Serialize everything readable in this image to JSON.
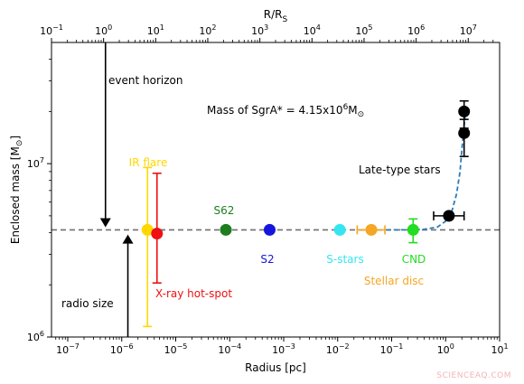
{
  "chart_data": {
    "type": "scatter",
    "xlabel": "Radius [pc]",
    "ylabel": "Enclosed mass [M",
    "ylabel_symbol": "⊙",
    "ylabel_close": "]",
    "top_xlabel": "R/R",
    "top_xlabel_sub": "S",
    "xscale": "log",
    "yscale": "log",
    "xlim": [
      5e-08,
      10
    ],
    "ylim": [
      1000000,
      50000000
    ],
    "top_xlim": [
      0.1,
      40000000
    ],
    "x_ticks": [
      {
        "base": "10",
        "exp": "−7",
        "value": 1e-07
      },
      {
        "base": "10",
        "exp": "−6",
        "value": 1e-06
      },
      {
        "base": "10",
        "exp": "−5",
        "value": 1e-05
      },
      {
        "base": "10",
        "exp": "−4",
        "value": 0.0001
      },
      {
        "base": "10",
        "exp": "−3",
        "value": 0.001
      },
      {
        "base": "10",
        "exp": "−2",
        "value": 0.01
      },
      {
        "base": "10",
        "exp": "−1",
        "value": 0.1
      },
      {
        "base": "10",
        "exp": "0",
        "value": 1
      },
      {
        "base": "10",
        "exp": "1",
        "value": 10
      }
    ],
    "top_x_ticks": [
      {
        "base": "10",
        "exp": "−1",
        "value": 0.1
      },
      {
        "base": "10",
        "exp": "0",
        "value": 1
      },
      {
        "base": "10",
        "exp": "1",
        "value": 10
      },
      {
        "base": "10",
        "exp": "2",
        "value": 100
      },
      {
        "base": "10",
        "exp": "3",
        "value": 1000
      },
      {
        "base": "10",
        "exp": "4",
        "value": 10000
      },
      {
        "base": "10",
        "exp": "5",
        "value": 100000
      },
      {
        "base": "10",
        "exp": "6",
        "value": 1000000
      },
      {
        "base": "10",
        "exp": "7",
        "value": 10000000
      }
    ],
    "y_ticks": [
      {
        "base": "10",
        "exp": "6",
        "value": 1000000
      },
      {
        "base": "10",
        "exp": "7",
        "value": 10000000
      }
    ],
    "reference_mass": {
      "value": 4150000,
      "label_prefix": "Mass of SgrA* = 4.15x10",
      "label_exp": "6",
      "label_unit": "M",
      "label_unit_symbol": "⊙",
      "color": "#707070"
    },
    "markers": [
      {
        "name": "event horizon",
        "label": "event horizon",
        "x": 5e-07,
        "y_from": 50000000,
        "y_to": 4300000,
        "direction": "down"
      },
      {
        "name": "radio size",
        "label": "radio size",
        "x": 1.3e-06,
        "y_from": 1000000,
        "y_to": 3900000,
        "direction": "up"
      }
    ],
    "points": [
      {
        "name": "IR flare",
        "label": "IR flare",
        "x": 3e-06,
        "y": 4150000,
        "y_err": [
          1150000,
          9500000
        ],
        "x_err": null,
        "color": "#ffd700"
      },
      {
        "name": "X-ray hot-spot",
        "label": "X-ray hot-spot",
        "x": 4.5e-06,
        "y": 3950000,
        "y_err": [
          2050000,
          8800000
        ],
        "x_err": null,
        "color": "#ee1111"
      },
      {
        "name": "S62",
        "label": "S62",
        "x": 8.5e-05,
        "y": 4150000,
        "y_err": null,
        "x_err": null,
        "color": "#1e7d1e"
      },
      {
        "name": "S2",
        "label": "S2",
        "x": 0.00055,
        "y": 4150000,
        "y_err": null,
        "x_err": null,
        "color": "#1515dd"
      },
      {
        "name": "S-stars",
        "label": "S-stars",
        "x": 0.011,
        "y": 4150000,
        "y_err": null,
        "x_err": null,
        "color": "#33e6f0"
      },
      {
        "name": "Stellar disc",
        "label": "Stellar disc",
        "x": 0.042,
        "y": 4150000,
        "y_err": null,
        "x_err": [
          0.023,
          0.075
        ],
        "color": "#f5a623"
      },
      {
        "name": "CND",
        "label": "CND",
        "x": 0.25,
        "y": 4150000,
        "y_err": [
          3500000,
          4800000
        ],
        "x_err": null,
        "color": "#22dd22"
      },
      {
        "name": "Late-type stars 1",
        "label": "",
        "x": 1.15,
        "y": 5000000,
        "y_err": null,
        "x_err": [
          0.6,
          2.2
        ],
        "color": "#000000"
      },
      {
        "name": "Late-type stars 2",
        "label": "",
        "x": 2.2,
        "y": 15000000,
        "y_err": [
          11000000,
          18000000
        ],
        "x_err": null,
        "color": "#000000"
      },
      {
        "name": "Late-type stars 3",
        "label": "",
        "x": 2.2,
        "y": 20000000,
        "y_err": [
          16000000,
          23000000
        ],
        "x_err": null,
        "color": "#000000"
      }
    ],
    "text_labels": [
      {
        "name": "late-type-stars-label",
        "text": "Late-type stars",
        "color": "#000000"
      }
    ],
    "model_curve": {
      "name": "enclosed mass model",
      "color": "#2b7bb9",
      "style": "dashed",
      "x": [
        0.08,
        0.2,
        0.4,
        0.7,
        1.0,
        1.3,
        1.6,
        1.85,
        2.0,
        2.15,
        2.3
      ],
      "y": [
        4150000,
        4150000,
        4180000,
        4300000,
        4650000,
        5300000,
        6700000,
        9000000,
        12000000,
        15500000,
        19000000
      ]
    }
  },
  "watermark": "SCIENCEAQ.COM"
}
